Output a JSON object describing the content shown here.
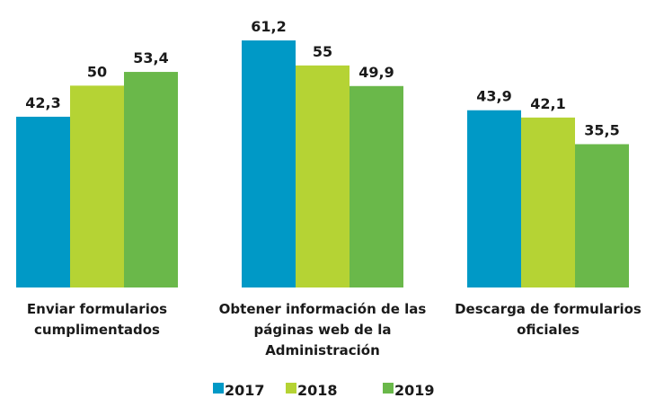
{
  "chart_data": {
    "type": "bar",
    "categories": [
      "Enviar formularios cumplimentados",
      "Obtener información de las páginas web de la Administración",
      "Descarga de formularios oficiales"
    ],
    "series": [
      {
        "name": "2017",
        "color": "#0099c6",
        "values": [
          42.3,
          61.2,
          43.9
        ],
        "value_labels": [
          "42,3",
          "61,2",
          "43,9"
        ]
      },
      {
        "name": "2018",
        "color": "#b5d334",
        "values": [
          50,
          55,
          42.1
        ],
        "value_labels": [
          "50",
          "55",
          "42,1"
        ]
      },
      {
        "name": "2019",
        "color": "#6ab84a",
        "values": [
          53.4,
          49.9,
          35.5
        ],
        "value_labels": [
          "53,4",
          "49,9",
          "35,5"
        ]
      }
    ]
  }
}
